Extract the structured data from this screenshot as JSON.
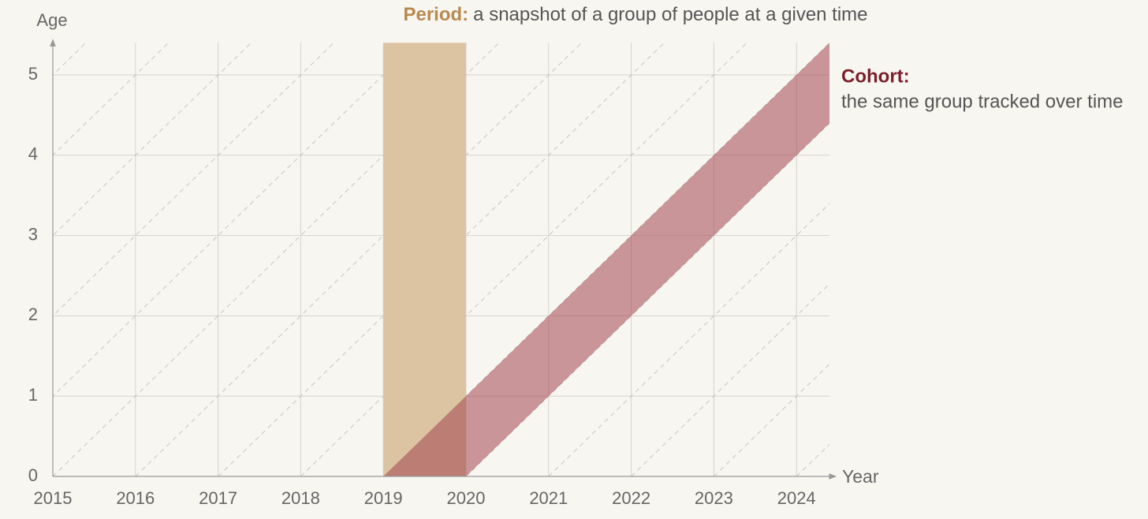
{
  "chart_data": {
    "type": "lexis",
    "title_label": "Period:",
    "title": "a snapshot of a group of people at a given time",
    "xlabel": "Year",
    "ylabel": "Age",
    "xlim": [
      2015,
      2024.4
    ],
    "ylim": [
      0,
      5.4
    ],
    "xticks": [
      2015,
      2016,
      2017,
      2018,
      2019,
      2020,
      2021,
      2022,
      2023,
      2024
    ],
    "yticks": [
      0,
      1,
      2,
      3,
      4,
      5
    ],
    "grid": true,
    "lifelines": true,
    "period": {
      "x": [
        2019,
        2020
      ],
      "color": "#dcc4a3",
      "label_color": "#b8894f"
    },
    "cohort": {
      "label": "Cohort:",
      "description": "the same group tracked over time",
      "birth": [
        2019,
        2020
      ],
      "color": "#a3454f",
      "label_color": "#7a1f2b"
    }
  }
}
